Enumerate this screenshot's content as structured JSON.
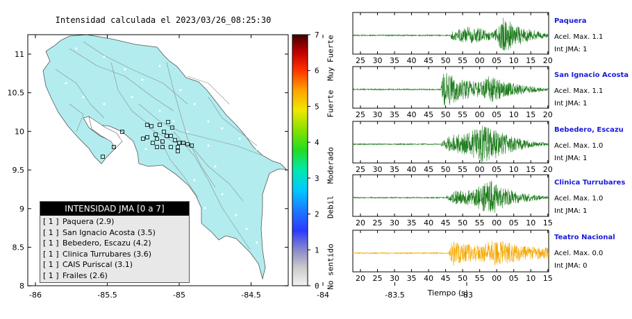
{
  "map": {
    "title": "Intensidad calculada el 2023/03/26_08:25:30",
    "x_ticks": [
      "-86",
      "-85.5",
      "-85",
      "-84.5",
      "-84",
      "-83.5",
      "-83"
    ],
    "y_ticks": [
      "11",
      "10.5",
      "10",
      "9.5",
      "9",
      "8.5",
      "8"
    ],
    "land_color": "#b2ecee"
  },
  "legend": {
    "title": "INTENSIDAD JMA [0 a 7]",
    "items": [
      {
        "bracket": "[ 1 ]",
        "label": "Paquera (2.9)"
      },
      {
        "bracket": "[ 1 ]",
        "label": "San Ignacio Acosta (3.5)"
      },
      {
        "bracket": "[ 1 ]",
        "label": "Bebedero, Escazu (4.2)"
      },
      {
        "bracket": "[ 1 ]",
        "label": "Clinica Turrubares (3.6)"
      },
      {
        "bracket": "[ 1 ]",
        "label": "CAIS Puriscal (3.1)"
      },
      {
        "bracket": "[ 1 ]",
        "label": "Frailes (2.6)"
      }
    ]
  },
  "color_scale": {
    "ticks": [
      "0",
      "1",
      "2",
      "3",
      "4",
      "5",
      "6",
      "7"
    ],
    "labels": [
      "No sentido",
      "Debil",
      "Moderado",
      "Fuerte",
      "Muy Fuerte"
    ]
  },
  "chart_data": [
    {
      "type": "line",
      "name": "Paquera",
      "line1": "Acel. Max. 1.1",
      "line2": "Int JMA: 1",
      "color": "#1a7a1a",
      "x_ticks": [
        "25",
        "30",
        "35",
        "40",
        "45",
        "50",
        "55",
        "00",
        "05",
        "10",
        "15",
        "20"
      ]
    },
    {
      "type": "line",
      "name": "San Ignacio Acosta",
      "line1": "Acel. Max. 1.1",
      "line2": "Int JMA: 1",
      "color": "#1a7a1a",
      "x_ticks": [
        "25",
        "30",
        "35",
        "40",
        "45",
        "50",
        "55",
        "00",
        "05",
        "10",
        "15",
        "20"
      ]
    },
    {
      "type": "line",
      "name": "Bebedero, Escazu",
      "line1": "Acel. Max. 1.0",
      "line2": "Int JMA: 1",
      "color": "#1a7a1a",
      "x_ticks": [
        "25",
        "30",
        "35",
        "40",
        "45",
        "50",
        "55",
        "00",
        "05",
        "10",
        "15",
        "20"
      ]
    },
    {
      "type": "line",
      "name": "Clinica Turrubares",
      "line1": "Acel. Max. 1.0",
      "line2": "Int JMA: 1",
      "color": "#1a7a1a",
      "x_ticks": [
        "20",
        "25",
        "30",
        "35",
        "40",
        "45",
        "50",
        "55",
        "00",
        "05",
        "10",
        "15"
      ]
    },
    {
      "type": "line",
      "name": "Teatro Nacional",
      "line1": "Acel. Max. 0.0",
      "line2": "Int JMA: 0",
      "color": "#f5a800",
      "x_ticks": [
        "20",
        "25",
        "30",
        "35",
        "40",
        "45",
        "50",
        "55",
        "00",
        "05",
        "10",
        "15"
      ]
    }
  ],
  "xlabel": "Tiempo (s)"
}
